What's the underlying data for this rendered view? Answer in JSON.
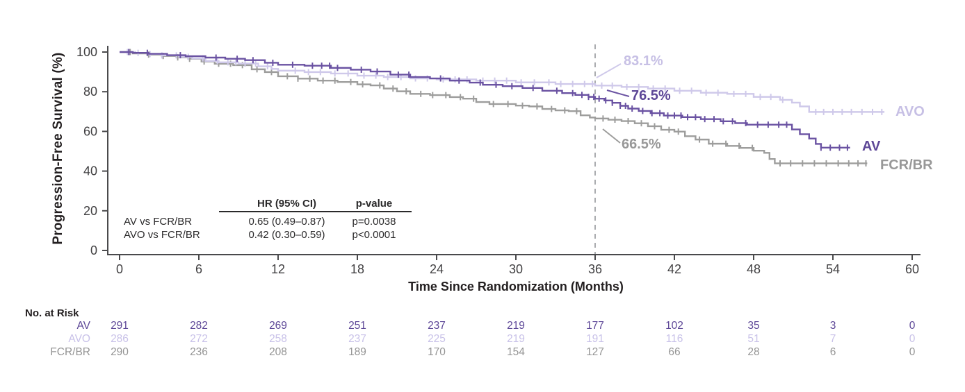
{
  "chart_data": {
    "type": "line",
    "subtype": "kaplan-meier-step",
    "title": "",
    "xlabel": "Time Since Randomization (Months)",
    "ylabel": "Progression-Free Survival (%)",
    "xlim": [
      0,
      60
    ],
    "ylim": [
      0,
      100
    ],
    "xticks": [
      0,
      6,
      12,
      18,
      24,
      30,
      36,
      42,
      48,
      54,
      60
    ],
    "yticks": [
      0,
      20,
      40,
      60,
      80,
      100
    ],
    "grid": false,
    "reference_line_x": 36,
    "axis_color": "#4a4a4c",
    "tick_text_color": "#414042",
    "dashed_line_color": "#a9abae",
    "series": [
      {
        "name": "AVO",
        "color": "#cfc9ea",
        "text_color": "#c7c0e5",
        "annotation_at_36_months": "83.1%",
        "steps": [
          [
            0,
            100
          ],
          [
            1.2,
            99.6
          ],
          [
            2.2,
            99.0
          ],
          [
            3.2,
            98.3
          ],
          [
            4.5,
            97.6
          ],
          [
            5.5,
            96.8
          ],
          [
            6.5,
            95.5
          ],
          [
            7.5,
            94.8
          ],
          [
            9,
            94.2
          ],
          [
            10.5,
            92.8
          ],
          [
            11.5,
            91.5
          ],
          [
            12,
            90.6
          ],
          [
            14,
            89.9
          ],
          [
            16,
            89.2
          ],
          [
            18,
            88.1
          ],
          [
            20,
            87.4
          ],
          [
            22,
            86.7
          ],
          [
            24,
            86.2
          ],
          [
            27,
            85.6
          ],
          [
            30,
            84.7
          ],
          [
            33,
            83.9
          ],
          [
            36,
            83.1
          ],
          [
            38,
            82.4
          ],
          [
            40,
            81.6
          ],
          [
            42,
            80.5
          ],
          [
            44,
            79.5
          ],
          [
            46,
            78.9
          ],
          [
            48,
            77.4
          ],
          [
            50,
            75.9
          ],
          [
            50.9,
            74.5
          ],
          [
            51.5,
            72.6
          ],
          [
            52.2,
            69.8
          ]
        ],
        "end_month": 57.9,
        "censor_months": [
          0.6,
          1.4,
          2.3,
          3.2,
          4.3,
          5.2,
          6.3,
          7.4,
          8.2,
          8.8,
          9.5,
          10.3,
          11.2,
          13.3,
          14.3,
          15.2,
          16.3,
          17.3,
          18.5,
          19.4,
          20.3,
          21.3,
          22.4,
          23.3,
          24.5,
          25.4,
          26.3,
          27.5,
          28.4,
          29.3,
          30.4,
          31.4,
          32.5,
          33.4,
          34.3,
          35.2,
          35.8,
          36.5,
          37.3,
          38.4,
          39.3,
          40.4,
          41.3,
          42.4,
          43.3,
          44.4,
          45.3,
          46.5,
          47.4,
          48.5,
          49.3,
          50.2,
          52.7,
          53.3,
          54.0,
          54.7,
          55.4,
          56.2,
          57.0,
          57.7
        ]
      },
      {
        "name": "AV",
        "color": "#6a52a2",
        "text_color": "#5d4797",
        "annotation_at_36_months": "76.5%",
        "steps": [
          [
            0,
            100
          ],
          [
            1,
            99.6
          ],
          [
            2.2,
            99.1
          ],
          [
            3.6,
            98.4
          ],
          [
            5,
            97.9
          ],
          [
            6.5,
            97.2
          ],
          [
            8,
            96.6
          ],
          [
            9.5,
            95.9
          ],
          [
            11,
            94.6
          ],
          [
            12,
            93.6
          ],
          [
            14,
            93.1
          ],
          [
            16,
            92.0
          ],
          [
            17.5,
            91.1
          ],
          [
            19,
            90.2
          ],
          [
            20.5,
            88.6
          ],
          [
            22,
            87.4
          ],
          [
            23.5,
            86.7
          ],
          [
            25,
            85.6
          ],
          [
            26.5,
            84.6
          ],
          [
            27.5,
            83.5
          ],
          [
            29,
            82.8
          ],
          [
            30.5,
            81.9
          ],
          [
            32,
            80.5
          ],
          [
            33.5,
            79.3
          ],
          [
            34.5,
            78.4
          ],
          [
            35.5,
            77.4
          ],
          [
            36,
            76.5
          ],
          [
            36.7,
            75.6
          ],
          [
            37.3,
            74.4
          ],
          [
            37.9,
            72.9
          ],
          [
            38.5,
            71.5
          ],
          [
            39.3,
            70.3
          ],
          [
            40.2,
            69.2
          ],
          [
            41.2,
            68.0
          ],
          [
            42.6,
            67.2
          ],
          [
            44,
            66.2
          ],
          [
            45.5,
            65.1
          ],
          [
            46.6,
            64.2
          ],
          [
            47.5,
            63.4
          ],
          [
            50.9,
            61.0
          ],
          [
            51.5,
            58.6
          ],
          [
            52.2,
            56.4
          ],
          [
            52.7,
            53.7
          ],
          [
            53.1,
            51.8
          ]
        ],
        "end_month": 55.3,
        "censor_months": [
          0.7,
          2.1,
          4.6,
          7.3,
          8.9,
          10.1,
          11.6,
          13.1,
          14.6,
          15.3,
          15.9,
          16.5,
          18.3,
          19.5,
          21.1,
          21.9,
          24.3,
          25.7,
          27.3,
          28.5,
          29.7,
          31.3,
          33.1,
          34.3,
          35.0,
          35.5,
          35.9,
          36.3,
          36.8,
          37.3,
          37.9,
          38.3,
          38.8,
          39.6,
          40.3,
          40.9,
          41.5,
          42.0,
          42.5,
          43.0,
          43.6,
          44.3,
          45.0,
          45.7,
          46.4,
          47.4,
          48.3,
          49.1,
          49.9,
          50.5,
          53.1,
          53.8,
          54.5,
          55.1
        ]
      },
      {
        "name": "FCR/BR",
        "color": "#9d9d9c",
        "text_color": "#989898",
        "annotation_at_36_months": "66.5%",
        "steps": [
          [
            0,
            100
          ],
          [
            1,
            99.3
          ],
          [
            2.1,
            98.7
          ],
          [
            3.2,
            98.0
          ],
          [
            4.3,
            97.3
          ],
          [
            5.2,
            96.6
          ],
          [
            6.2,
            95.2
          ],
          [
            7.2,
            94.1
          ],
          [
            8.6,
            93.4
          ],
          [
            10,
            91.3
          ],
          [
            11,
            89.9
          ],
          [
            12,
            87.8
          ],
          [
            13.5,
            86.6
          ],
          [
            15,
            85.6
          ],
          [
            16.5,
            84.9
          ],
          [
            18,
            83.7
          ],
          [
            19,
            83.2
          ],
          [
            20,
            81.6
          ],
          [
            21,
            80.2
          ],
          [
            22,
            78.9
          ],
          [
            23.5,
            78.3
          ],
          [
            25,
            77.3
          ],
          [
            26,
            76.5
          ],
          [
            27,
            74.8
          ],
          [
            28,
            73.8
          ],
          [
            30,
            73.0
          ],
          [
            31,
            72.6
          ],
          [
            32,
            71.3
          ],
          [
            33,
            70.6
          ],
          [
            34,
            70.2
          ],
          [
            34.9,
            68.1
          ],
          [
            35.6,
            67.0
          ],
          [
            36,
            66.5
          ],
          [
            37,
            65.9
          ],
          [
            38,
            65.2
          ],
          [
            39,
            64.1
          ],
          [
            40,
            62.6
          ],
          [
            41,
            60.8
          ],
          [
            42,
            59.9
          ],
          [
            42.8,
            57.6
          ],
          [
            43.6,
            55.9
          ],
          [
            44.6,
            53.8
          ],
          [
            46,
            52.7
          ],
          [
            47,
            51.7
          ],
          [
            48,
            50.3
          ],
          [
            48.8,
            49.2
          ],
          [
            49.2,
            46.1
          ],
          [
            49.6,
            43.9
          ]
        ],
        "end_month": 56.6,
        "censor_months": [
          0.8,
          2.2,
          3.3,
          4.4,
          5.3,
          6.4,
          7.5,
          8.4,
          9.3,
          10.4,
          11.5,
          12.7,
          13.5,
          14.4,
          15.4,
          16.3,
          17.5,
          18.4,
          19.7,
          20.7,
          21.7,
          22.8,
          23.7,
          24.7,
          25.8,
          26.8,
          28.3,
          29.4,
          30.5,
          31.6,
          32.7,
          33.7,
          34.6,
          36.6,
          37.5,
          38.5,
          39.5,
          40.5,
          41.6,
          42.3,
          43.9,
          44.9,
          45.9,
          46.9,
          47.9,
          50.0,
          50.8,
          51.7,
          52.6,
          53.5,
          54.4,
          55.2,
          55.9,
          56.5
        ]
      }
    ]
  },
  "stats_table": {
    "headers": {
      "hr": "HR (95% CI)",
      "p": "p-value"
    },
    "rows": [
      {
        "label": "AV vs FCR/BR",
        "hr": "0.65 (0.49–0.87)",
        "p": "p=0.0038"
      },
      {
        "label": "AVO vs FCR/BR",
        "hr": "0.42 (0.30–0.59)",
        "p": "p<0.0001"
      }
    ]
  },
  "risk_table": {
    "title": "No. at Risk",
    "time_points": [
      0,
      6,
      12,
      18,
      24,
      30,
      36,
      42,
      48,
      54,
      60
    ],
    "rows": [
      {
        "label": "AV",
        "color": "#5d4797",
        "counts": [
          291,
          282,
          269,
          251,
          237,
          219,
          177,
          102,
          35,
          3,
          0
        ]
      },
      {
        "label": "AVO",
        "color": "#c8c1e8",
        "counts": [
          286,
          272,
          258,
          237,
          225,
          219,
          191,
          116,
          51,
          7,
          0
        ]
      },
      {
        "label": "FCR/BR",
        "color": "#949494",
        "counts": [
          290,
          236,
          208,
          189,
          170,
          154,
          127,
          66,
          28,
          6,
          0
        ]
      }
    ]
  }
}
